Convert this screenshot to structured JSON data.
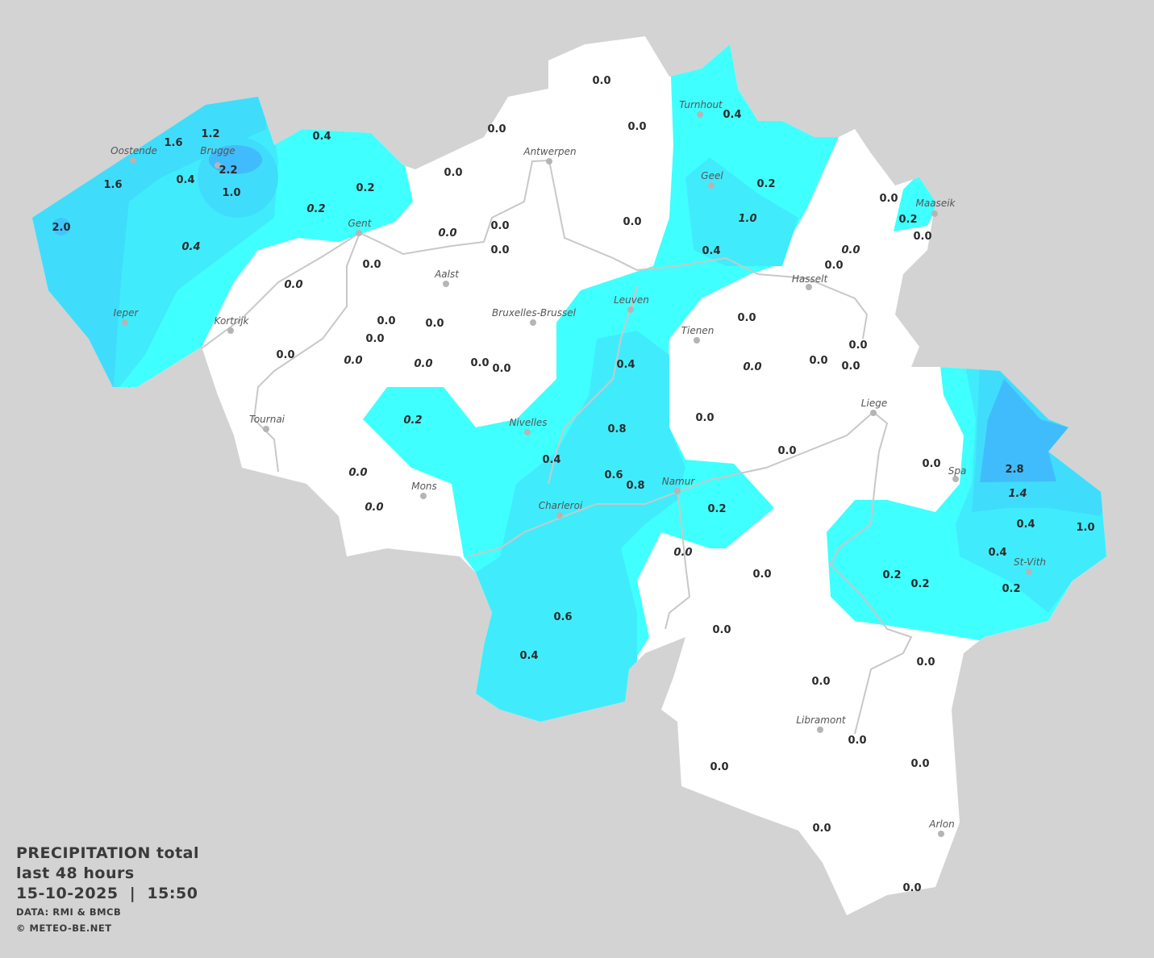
{
  "legend": {
    "title": "PRECIPITATION total",
    "period": "last 48 hours",
    "datetime": "15-10-2025  |  15:50",
    "source": "DATA: RMI & BMCB",
    "copyright": "© METEO-BE.NET"
  },
  "colors": {
    "background": "#d3d3d3",
    "land_no_rain": "#ffffff",
    "rain_low": "#40ffff",
    "rain_mid": "#40ecfc",
    "rain_high": "#40dcfc",
    "rain_max": "#40bcfc",
    "rivers": "#c8c8c8"
  },
  "cities": [
    "Oostende",
    "Brugge",
    "Gent",
    "Antwerpen",
    "Turnhout",
    "Geel",
    "Maaseik",
    "Hasselt",
    "Aalst",
    "Leuven",
    "Bruxelles-Brussel",
    "Tienen",
    "Ieper",
    "Kortrijk",
    "Liege",
    "Tournai",
    "Nivelles",
    "Spa",
    "Mons",
    "Namur",
    "Charleroi",
    "St-Vith",
    "Libramont",
    "Arlon"
  ],
  "stations": [
    {
      "v": "0.0"
    },
    {
      "v": "0.0"
    },
    {
      "v": "0.0"
    },
    {
      "v": "0.0"
    },
    {
      "v": "0.0"
    },
    {
      "v": "0.0"
    },
    {
      "v": "0.0",
      "italic": true
    },
    {
      "v": "0.0"
    },
    {
      "v": "0.0"
    },
    {
      "v": "0.0",
      "italic": true
    },
    {
      "v": "0.0"
    },
    {
      "v": "0.0"
    },
    {
      "v": "0.0"
    },
    {
      "v": "0.0"
    },
    {
      "v": "0.0",
      "italic": true
    },
    {
      "v": "0.0",
      "italic": true
    },
    {
      "v": "0.0"
    },
    {
      "v": "0.0"
    },
    {
      "v": "0.4"
    },
    {
      "v": "0.2"
    },
    {
      "v": "1.0",
      "italic": true
    },
    {
      "v": "0.4"
    },
    {
      "v": "0.0"
    },
    {
      "v": "0.2"
    },
    {
      "v": "0.0"
    },
    {
      "v": "0.0",
      "italic": true
    },
    {
      "v": "0.0"
    },
    {
      "v": "0.0"
    },
    {
      "v": "0.0",
      "italic": true
    },
    {
      "v": "0.0"
    },
    {
      "v": "0.0"
    },
    {
      "v": "0.0"
    },
    {
      "v": "0.4"
    },
    {
      "v": "0.2",
      "italic": true
    },
    {
      "v": "0.8"
    },
    {
      "v": "0.0"
    },
    {
      "v": "0.4"
    },
    {
      "v": "0.6"
    },
    {
      "v": "0.8"
    },
    {
      "v": "0.0"
    },
    {
      "v": "0.0",
      "italic": true
    },
    {
      "v": "0.0",
      "italic": true
    },
    {
      "v": "0.2"
    },
    {
      "v": "0.0",
      "italic": true
    },
    {
      "v": "0.0"
    },
    {
      "v": "0.0"
    },
    {
      "v": "0.6"
    },
    {
      "v": "0.4"
    },
    {
      "v": "0.0"
    },
    {
      "v": "2.8"
    },
    {
      "v": "1.4",
      "italic": true
    },
    {
      "v": "0.4"
    },
    {
      "v": "1.0"
    },
    {
      "v": "0.4"
    },
    {
      "v": "0.2"
    },
    {
      "v": "0.2"
    },
    {
      "v": "0.2"
    },
    {
      "v": "0.0"
    },
    {
      "v": "0.0"
    },
    {
      "v": "0.0"
    },
    {
      "v": "0.0"
    },
    {
      "v": "0.0"
    },
    {
      "v": "0.0"
    },
    {
      "v": "0.0"
    },
    {
      "v": "1.2"
    },
    {
      "v": "1.6"
    },
    {
      "v": "2.2"
    },
    {
      "v": "0.4"
    },
    {
      "v": "1.6"
    },
    {
      "v": "0.4"
    },
    {
      "v": "1.0"
    },
    {
      "v": "0.2"
    },
    {
      "v": "0.2",
      "italic": true
    },
    {
      "v": "2.0"
    },
    {
      "v": "0.4",
      "italic": true
    }
  ]
}
